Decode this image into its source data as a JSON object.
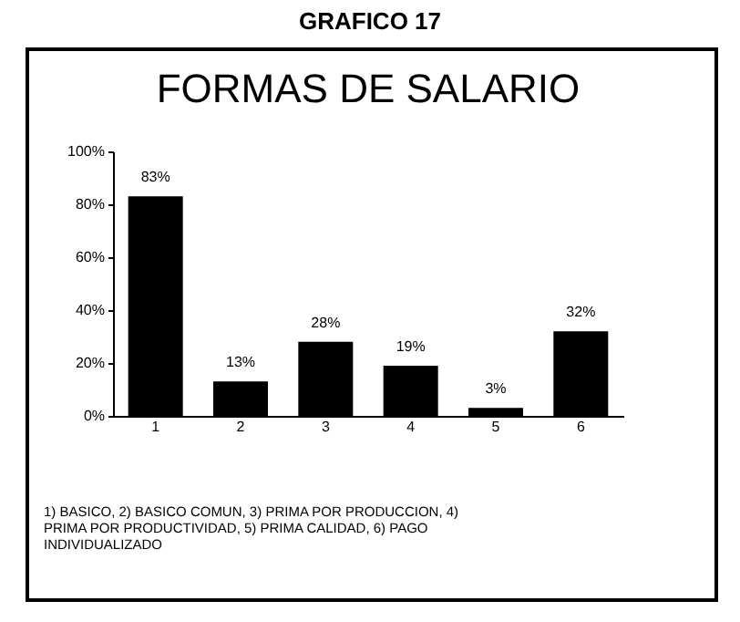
{
  "chart_data": {
    "type": "bar",
    "subtitle": "GRAFICO 17",
    "title": "FORMAS DE SALARIO",
    "categories": [
      "1",
      "2",
      "3",
      "4",
      "5",
      "6"
    ],
    "values": [
      83,
      13,
      28,
      19,
      3,
      32
    ],
    "color": "#000000",
    "value_labels": [
      "83%",
      "13%",
      "28%",
      "19%",
      "3%",
      "32%"
    ],
    "ylim": [
      0,
      100
    ],
    "yticks": [
      {
        "value": 0,
        "label": "0%"
      },
      {
        "value": 20,
        "label": "20%"
      },
      {
        "value": 40,
        "label": "40%"
      },
      {
        "value": 60,
        "label": "60%"
      },
      {
        "value": 80,
        "label": "80%"
      },
      {
        "value": 100,
        "label": "100%"
      }
    ],
    "annotations": [
      "1) BASICO, 2) BASICO COMUN, 3) PRIMA POR PRODUCCION, 4) PRIMA POR PRODUCTIVIDAD, 5) PRIMA CALIDAD, 6) PAGO INDIVIDUALIZADO"
    ]
  }
}
